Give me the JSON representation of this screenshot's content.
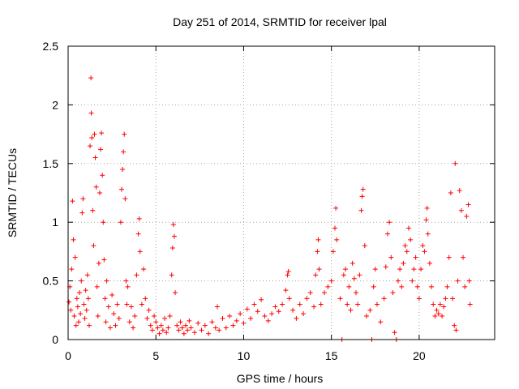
{
  "chart_data": {
    "type": "scatter",
    "title": "Day 251 of 2014, SRMTID for receiver lpal",
    "xlabel": "GPS time / hours",
    "ylabel": "SRMTID / TECUs",
    "xlim": [
      0,
      24.3
    ],
    "ylim": [
      0,
      2.5
    ],
    "x_ticks": [
      0,
      5,
      10,
      15,
      20
    ],
    "x_tick_labels": [
      "0",
      "5",
      "10",
      "15",
      "20"
    ],
    "y_ticks": [
      0,
      0.5,
      1,
      1.5,
      2,
      2.5
    ],
    "y_tick_labels": [
      "0",
      "0.5",
      "1",
      "1.5",
      "2",
      "2.5"
    ],
    "grid": true,
    "marker": "+",
    "series": [
      {
        "name": "SRMTID",
        "color": "#ff0000",
        "points": [
          [
            0.05,
            0.32
          ],
          [
            0.1,
            0.45
          ],
          [
            0.15,
            0.25
          ],
          [
            0.2,
            0.6
          ],
          [
            0.25,
            1.18
          ],
          [
            0.3,
            0.85
          ],
          [
            0.35,
            0.2
          ],
          [
            0.4,
            0.7
          ],
          [
            0.45,
            0.12
          ],
          [
            0.5,
            0.35
          ],
          [
            0.55,
            0.28
          ],
          [
            0.6,
            0.15
          ],
          [
            0.65,
            0.4
          ],
          [
            0.7,
            0.22
          ],
          [
            0.75,
            0.5
          ],
          [
            0.8,
            1.08
          ],
          [
            0.85,
            1.2
          ],
          [
            0.9,
            0.3
          ],
          [
            0.95,
            0.18
          ],
          [
            1.0,
            0.42
          ],
          [
            1.05,
            0.25
          ],
          [
            1.1,
            0.55
          ],
          [
            1.15,
            0.35
          ],
          [
            1.2,
            0.12
          ],
          [
            1.25,
            1.65
          ],
          [
            1.3,
            2.23
          ],
          [
            1.32,
            1.93
          ],
          [
            1.35,
            1.72
          ],
          [
            1.4,
            1.1
          ],
          [
            1.45,
            0.8
          ],
          [
            1.5,
            1.75
          ],
          [
            1.55,
            1.55
          ],
          [
            1.6,
            1.3
          ],
          [
            1.65,
            0.45
          ],
          [
            1.7,
            0.2
          ],
          [
            1.75,
            0.65
          ],
          [
            1.8,
            1.25
          ],
          [
            1.85,
            1.62
          ],
          [
            1.9,
            1.76
          ],
          [
            1.95,
            1.4
          ],
          [
            2.0,
            1.0
          ],
          [
            2.05,
            0.68
          ],
          [
            2.1,
            0.35
          ],
          [
            2.15,
            0.15
          ],
          [
            2.2,
            0.5
          ],
          [
            2.3,
            0.28
          ],
          [
            2.4,
            0.1
          ],
          [
            2.5,
            0.38
          ],
          [
            2.6,
            0.22
          ],
          [
            2.7,
            0.12
          ],
          [
            2.8,
            0.3
          ],
          [
            2.9,
            0.18
          ],
          [
            3.0,
            1.0
          ],
          [
            3.05,
            1.28
          ],
          [
            3.1,
            1.45
          ],
          [
            3.15,
            1.6
          ],
          [
            3.2,
            1.75
          ],
          [
            3.25,
            1.2
          ],
          [
            3.3,
            0.5
          ],
          [
            3.35,
            0.3
          ],
          [
            3.4,
            0.45
          ],
          [
            3.5,
            0.15
          ],
          [
            3.6,
            0.28
          ],
          [
            3.7,
            0.1
          ],
          [
            3.8,
            0.2
          ],
          [
            3.9,
            0.55
          ],
          [
            4.0,
            0.9
          ],
          [
            4.05,
            1.03
          ],
          [
            4.1,
            0.75
          ],
          [
            4.2,
            0.3
          ],
          [
            4.3,
            0.6
          ],
          [
            4.4,
            0.35
          ],
          [
            4.5,
            0.18
          ],
          [
            4.6,
            0.25
          ],
          [
            4.7,
            0.12
          ],
          [
            4.8,
            0.08
          ],
          [
            4.9,
            0.2
          ],
          [
            5.0,
            0.15
          ],
          [
            5.1,
            0.1
          ],
          [
            5.2,
            0.05
          ],
          [
            5.3,
            0.12
          ],
          [
            5.4,
            0.08
          ],
          [
            5.5,
            0.18
          ],
          [
            5.6,
            0.06
          ],
          [
            5.7,
            0.1
          ],
          [
            5.8,
            0.2
          ],
          [
            5.9,
            0.55
          ],
          [
            5.95,
            0.78
          ],
          [
            6.0,
            0.98
          ],
          [
            6.05,
            0.88
          ],
          [
            6.1,
            0.4
          ],
          [
            6.2,
            0.12
          ],
          [
            6.3,
            0.08
          ],
          [
            6.4,
            0.15
          ],
          [
            6.5,
            0.1
          ],
          [
            6.6,
            0.05
          ],
          [
            6.7,
            0.12
          ],
          [
            6.8,
            0.08
          ],
          [
            6.9,
            0.16
          ],
          [
            7.0,
            0.1
          ],
          [
            7.2,
            0.06
          ],
          [
            7.4,
            0.14
          ],
          [
            7.6,
            0.08
          ],
          [
            7.8,
            0.12
          ],
          [
            8.0,
            0.05
          ],
          [
            8.2,
            0.15
          ],
          [
            8.4,
            0.1
          ],
          [
            8.5,
            0.28
          ],
          [
            8.6,
            0.08
          ],
          [
            8.8,
            0.18
          ],
          [
            9.0,
            0.1
          ],
          [
            9.2,
            0.2
          ],
          [
            9.4,
            0.12
          ],
          [
            9.6,
            0.16
          ],
          [
            9.8,
            0.22
          ],
          [
            10.0,
            0.14
          ],
          [
            10.2,
            0.26
          ],
          [
            10.4,
            0.18
          ],
          [
            10.6,
            0.3
          ],
          [
            10.8,
            0.24
          ],
          [
            11.0,
            0.34
          ],
          [
            11.2,
            0.2
          ],
          [
            11.4,
            0.16
          ],
          [
            11.6,
            0.22
          ],
          [
            11.8,
            0.28
          ],
          [
            12.0,
            0.24
          ],
          [
            12.2,
            0.3
          ],
          [
            12.4,
            0.42
          ],
          [
            12.5,
            0.55
          ],
          [
            12.55,
            0.58
          ],
          [
            12.6,
            0.35
          ],
          [
            12.8,
            0.25
          ],
          [
            13.0,
            0.18
          ],
          [
            13.2,
            0.3
          ],
          [
            13.4,
            0.22
          ],
          [
            13.6,
            0.35
          ],
          [
            13.8,
            0.4
          ],
          [
            14.0,
            0.28
          ],
          [
            14.1,
            0.55
          ],
          [
            14.2,
            0.75
          ],
          [
            14.25,
            0.85
          ],
          [
            14.3,
            0.6
          ],
          [
            14.4,
            0.3
          ],
          [
            14.6,
            0.4
          ],
          [
            14.8,
            0.45
          ],
          [
            15.0,
            0.5
          ],
          [
            15.1,
            0.75
          ],
          [
            15.2,
            0.95
          ],
          [
            15.25,
            1.12
          ],
          [
            15.3,
            0.85
          ],
          [
            15.5,
            0.35
          ],
          [
            15.6,
            0.0
          ],
          [
            15.7,
            0.55
          ],
          [
            15.8,
            0.6
          ],
          [
            15.9,
            0.3
          ],
          [
            16.0,
            0.45
          ],
          [
            16.1,
            0.25
          ],
          [
            16.2,
            0.65
          ],
          [
            16.3,
            0.52
          ],
          [
            16.4,
            0.4
          ],
          [
            16.5,
            0.3
          ],
          [
            16.6,
            0.55
          ],
          [
            16.7,
            1.1
          ],
          [
            16.75,
            1.22
          ],
          [
            16.8,
            1.28
          ],
          [
            16.9,
            0.8
          ],
          [
            17.0,
            0.2
          ],
          [
            17.2,
            0.25
          ],
          [
            17.3,
            0.0
          ],
          [
            17.4,
            0.45
          ],
          [
            17.5,
            0.6
          ],
          [
            17.6,
            0.3
          ],
          [
            17.8,
            0.15
          ],
          [
            18.0,
            0.35
          ],
          [
            18.1,
            0.62
          ],
          [
            18.2,
            0.9
          ],
          [
            18.3,
            1.0
          ],
          [
            18.4,
            0.7
          ],
          [
            18.5,
            0.4
          ],
          [
            18.6,
            0.06
          ],
          [
            18.7,
            0.0
          ],
          [
            18.8,
            0.5
          ],
          [
            18.9,
            0.6
          ],
          [
            19.0,
            0.45
          ],
          [
            19.1,
            0.65
          ],
          [
            19.2,
            0.8
          ],
          [
            19.3,
            0.75
          ],
          [
            19.4,
            0.95
          ],
          [
            19.5,
            0.85
          ],
          [
            19.6,
            0.5
          ],
          [
            19.7,
            0.6
          ],
          [
            19.8,
            0.7
          ],
          [
            19.9,
            0.45
          ],
          [
            20.0,
            0.35
          ],
          [
            20.1,
            0.6
          ],
          [
            20.2,
            0.8
          ],
          [
            20.3,
            0.75
          ],
          [
            20.4,
            1.02
          ],
          [
            20.45,
            1.12
          ],
          [
            20.5,
            0.9
          ],
          [
            20.6,
            0.65
          ],
          [
            20.7,
            0.45
          ],
          [
            20.8,
            0.3
          ],
          [
            20.9,
            0.2
          ],
          [
            21.0,
            0.25
          ],
          [
            21.1,
            0.22
          ],
          [
            21.2,
            0.3
          ],
          [
            21.3,
            0.2
          ],
          [
            21.4,
            0.28
          ],
          [
            21.5,
            0.35
          ],
          [
            21.6,
            0.45
          ],
          [
            21.7,
            0.7
          ],
          [
            21.8,
            1.25
          ],
          [
            21.9,
            0.35
          ],
          [
            22.0,
            0.12
          ],
          [
            22.05,
            1.5
          ],
          [
            22.1,
            0.08
          ],
          [
            22.2,
            0.5
          ],
          [
            22.3,
            1.27
          ],
          [
            22.4,
            1.1
          ],
          [
            22.5,
            0.7
          ],
          [
            22.6,
            0.45
          ],
          [
            22.7,
            1.05
          ],
          [
            22.8,
            1.15
          ],
          [
            22.85,
            0.5
          ],
          [
            22.9,
            0.3
          ]
        ]
      }
    ]
  }
}
